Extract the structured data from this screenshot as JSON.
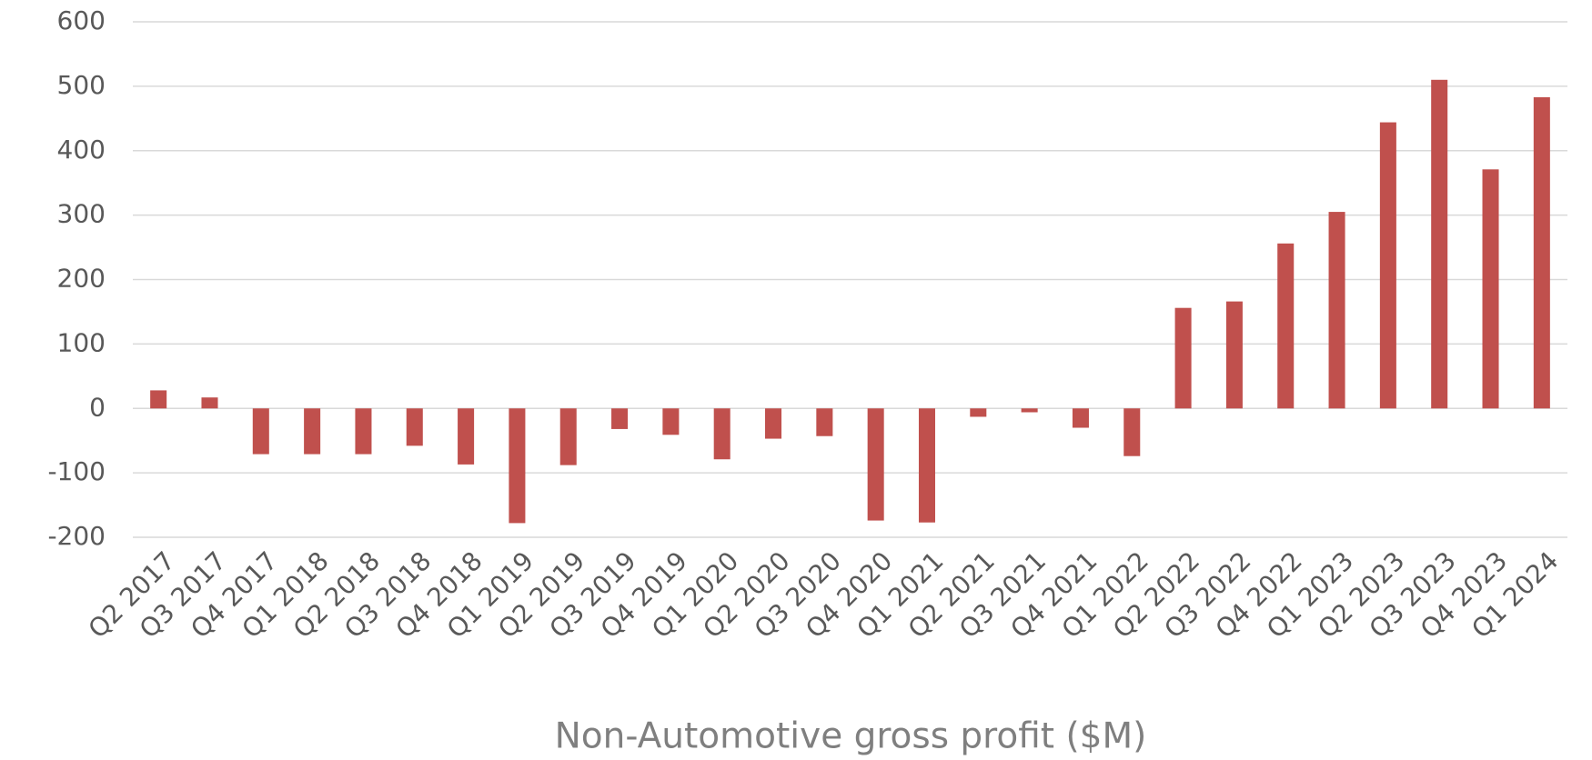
{
  "chart_data": {
    "type": "bar",
    "title": "Non-Automotive gross profit ($M)",
    "categories": [
      "Q2 2017",
      "Q3 2017",
      "Q4 2017",
      "Q1 2018",
      "Q2 2018",
      "Q3 2018",
      "Q4 2018",
      "Q1 2019",
      "Q2 2019",
      "Q3 2019",
      "Q4 2019",
      "Q1 2020",
      "Q2 2020",
      "Q3 2020",
      "Q4 2020",
      "Q1 2021",
      "Q2 2021",
      "Q3 2021",
      "Q4 2021",
      "Q1 2022",
      "Q2 2022",
      "Q3 2022",
      "Q4 2022",
      "Q1 2023",
      "Q2 2023",
      "Q3 2023",
      "Q4 2023",
      "Q1 2024"
    ],
    "values": [
      28,
      17,
      -71,
      -71,
      -71,
      -58,
      -87,
      -178,
      -88,
      -32,
      -41,
      -79,
      -47,
      -43,
      -174,
      -177,
      -13,
      -6,
      -30,
      -74,
      156,
      166,
      256,
      305,
      444,
      510,
      371,
      483
    ],
    "color": "#c0504d",
    "ylim": [
      -200,
      600
    ],
    "yticks": [
      -200,
      -100,
      0,
      100,
      200,
      300,
      400,
      500,
      600
    ],
    "grid": true
  }
}
